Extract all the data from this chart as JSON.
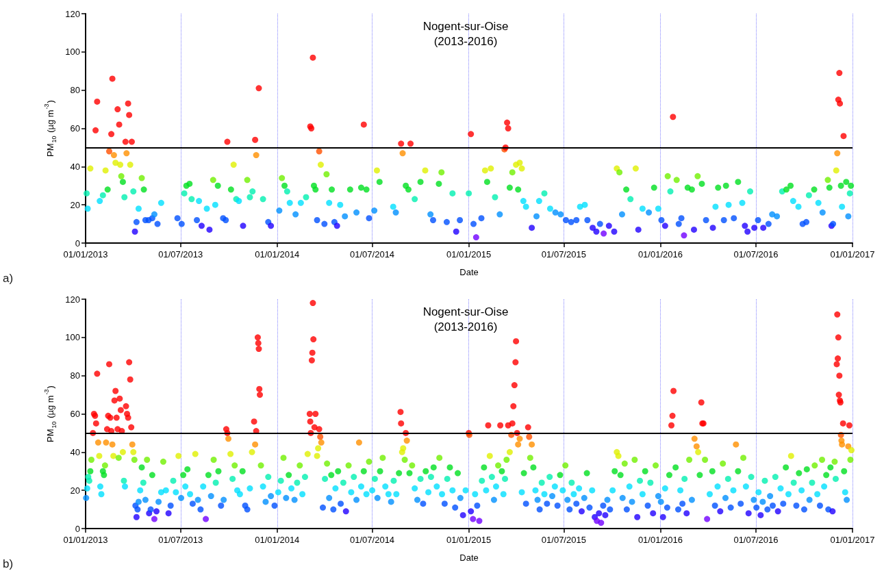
{
  "chart_data": [
    {
      "type": "scatter",
      "title": "Nogent-sur-Oise\n(2013-2016)",
      "xlabel": "Date",
      "ylabel": "PM$_{10}$ (µg m$^{-3}$)",
      "annotations": [
        "a)"
      ],
      "marker": "circle",
      "grid": "x",
      "xlim": [
        "2013-01-01",
        "2017-01-01"
      ],
      "xticks": [
        {
          "value": "2013-01-01",
          "label": "01/01/2013"
        },
        {
          "value": "2013-07-01",
          "label": "01/07/2013"
        },
        {
          "value": "2014-01-01",
          "label": "01/01/2014"
        },
        {
          "value": "2014-07-01",
          "label": "01/07/2014"
        },
        {
          "value": "2015-01-01",
          "label": "01/01/2015"
        },
        {
          "value": "2015-07-01",
          "label": "01/07/2015"
        },
        {
          "value": "2016-01-01",
          "label": "01/01/2016"
        },
        {
          "value": "2016-07-01",
          "label": "01/07/2016"
        },
        {
          "value": "2017-01-01",
          "label": "01/01/2017"
        }
      ],
      "ylim": [
        0,
        120
      ],
      "yticks": [
        0,
        20,
        40,
        60,
        80,
        100,
        120
      ],
      "ref_lines": [
        {
          "axis": "y",
          "value": 50,
          "color": "#000000"
        }
      ],
      "x": [
        "2013-01-03",
        "2013-01-05",
        "2013-01-10",
        "2013-01-20",
        "2013-01-23",
        "2013-01-28",
        "2013-02-03",
        "2013-02-08",
        "2013-02-12",
        "2013-02-15",
        "2013-02-19",
        "2013-02-21",
        "2013-02-24",
        "2013-02-27",
        "2013-03-03",
        "2013-03-06",
        "2013-03-08",
        "2013-03-10",
        "2013-03-13",
        "2013-03-16",
        "2013-03-18",
        "2013-03-20",
        "2013-03-23",
        "2013-03-25",
        "2013-03-27",
        "2013-03-30",
        "2013-04-02",
        "2013-04-05",
        "2013-04-08",
        "2013-04-12",
        "2013-04-18",
        "2013-04-22",
        "2013-04-25",
        "2013-05-01",
        "2013-05-08",
        "2013-05-12",
        "2013-05-18",
        "2013-05-25",
        "2013-06-25",
        "2013-07-03",
        "2013-07-08",
        "2013-07-12",
        "2013-07-18",
        "2013-07-22",
        "2013-08-01",
        "2013-08-05",
        "2013-08-10",
        "2013-08-20",
        "2013-08-25",
        "2013-09-01",
        "2013-09-05",
        "2013-09-10",
        "2013-09-20",
        "2013-09-25",
        "2013-09-28",
        "2013-10-05",
        "2013-10-10",
        "2013-10-15",
        "2013-10-20",
        "2013-10-28",
        "2013-11-05",
        "2013-11-10",
        "2013-11-15",
        "2013-11-20",
        "2013-11-22",
        "2013-11-27",
        "2013-12-05",
        "2013-12-15",
        "2013-12-20",
        "2014-01-05",
        "2014-01-10",
        "2014-01-15",
        "2014-01-20",
        "2014-01-25",
        "2014-02-05",
        "2014-02-15",
        "2014-02-25",
        "2014-03-05",
        "2014-03-07",
        "2014-03-10",
        "2014-03-12",
        "2014-03-15",
        "2014-03-18",
        "2014-03-22",
        "2014-03-25",
        "2014-04-01",
        "2014-04-05",
        "2014-04-10",
        "2014-04-15",
        "2014-04-20",
        "2014-04-25",
        "2014-05-01",
        "2014-05-10",
        "2014-05-20",
        "2014-06-01",
        "2014-06-10",
        "2014-06-15",
        "2014-06-20",
        "2014-06-25",
        "2014-07-05",
        "2014-07-10",
        "2014-07-15",
        "2014-08-10",
        "2014-08-15",
        "2014-08-25",
        "2014-08-28",
        "2014-09-03",
        "2014-09-08",
        "2014-09-12",
        "2014-09-20",
        "2014-10-01",
        "2014-10-10",
        "2014-10-20",
        "2014-10-25",
        "2014-11-05",
        "2014-11-10",
        "2014-11-20",
        "2014-12-01",
        "2014-12-08",
        "2014-12-15",
        "2015-01-01",
        "2015-01-05",
        "2015-01-10",
        "2015-01-15",
        "2015-01-25",
        "2015-02-01",
        "2015-02-05",
        "2015-02-12",
        "2015-02-20",
        "2015-03-01",
        "2015-03-10",
        "2015-03-12",
        "2015-03-15",
        "2015-03-17",
        "2015-03-20",
        "2015-03-25",
        "2015-04-01",
        "2015-04-05",
        "2015-04-08",
        "2015-04-12",
        "2015-04-15",
        "2015-04-20",
        "2015-05-01",
        "2015-05-10",
        "2015-05-15",
        "2015-05-25",
        "2015-06-05",
        "2015-06-15",
        "2015-06-25",
        "2015-07-05",
        "2015-07-15",
        "2015-07-25",
        "2015-08-01",
        "2015-08-10",
        "2015-08-15",
        "2015-08-25",
        "2015-09-01",
        "2015-09-08",
        "2015-09-15",
        "2015-09-25",
        "2015-10-05",
        "2015-10-10",
        "2015-10-15",
        "2015-10-20",
        "2015-10-28",
        "2015-11-05",
        "2015-11-15",
        "2015-11-20",
        "2015-11-28",
        "2015-12-10",
        "2015-12-20",
        "2015-12-28",
        "2016-01-03",
        "2016-01-10",
        "2016-01-15",
        "2016-01-20",
        "2016-01-25",
        "2016-02-01",
        "2016-02-05",
        "2016-02-10",
        "2016-02-15",
        "2016-02-22",
        "2016-03-01",
        "2016-03-05",
        "2016-03-12",
        "2016-03-20",
        "2016-03-28",
        "2016-04-10",
        "2016-04-15",
        "2016-04-20",
        "2016-05-01",
        "2016-05-05",
        "2016-05-10",
        "2016-05-20",
        "2016-05-28",
        "2016-06-05",
        "2016-06-10",
        "2016-06-15",
        "2016-06-20",
        "2016-06-28",
        "2016-07-05",
        "2016-07-15",
        "2016-07-25",
        "2016-08-01",
        "2016-08-10",
        "2016-08-20",
        "2016-08-28",
        "2016-09-05",
        "2016-09-10",
        "2016-09-20",
        "2016-09-28",
        "2016-10-05",
        "2016-10-10",
        "2016-10-20",
        "2016-10-28",
        "2016-11-05",
        "2016-11-15",
        "2016-11-18",
        "2016-11-22",
        "2016-11-25",
        "2016-12-01",
        "2016-12-03",
        "2016-12-05",
        "2016-12-07",
        "2016-12-08",
        "2016-12-10",
        "2016-12-12",
        "2016-12-15",
        "2016-12-20",
        "2016-12-24",
        "2016-12-27",
        "2016-12-29"
      ],
      "values": [
        26,
        18,
        39,
        59,
        74,
        22,
        25,
        38,
        28,
        48,
        57,
        86,
        46,
        42,
        70,
        62,
        41,
        35,
        32,
        24,
        53,
        47,
        73,
        67,
        41,
        53,
        27,
        6,
        11,
        18,
        34,
        28,
        12,
        12,
        13,
        15,
        10,
        21,
        13,
        10,
        26,
        30,
        31,
        23,
        12,
        22,
        9,
        18,
        7,
        33,
        20,
        30,
        13,
        12,
        53,
        28,
        41,
        23,
        22,
        9,
        33,
        24,
        27,
        54,
        46,
        81,
        23,
        11,
        9,
        17,
        34,
        30,
        27,
        21,
        15,
        21,
        24,
        61,
        60,
        97,
        30,
        28,
        12,
        48,
        41,
        10,
        36,
        21,
        28,
        11,
        9,
        20,
        14,
        28,
        16,
        29,
        62,
        28,
        13,
        17,
        38,
        32,
        19,
        16,
        52,
        47,
        30,
        28,
        52,
        23,
        32,
        38,
        15,
        12,
        31,
        37,
        11,
        26,
        6,
        12,
        26,
        57,
        10,
        3,
        13,
        38,
        32,
        39,
        24,
        15,
        49,
        50,
        63,
        60,
        29,
        37,
        41,
        28,
        42,
        39,
        22,
        19,
        8,
        14,
        22,
        26,
        18,
        16,
        15,
        12,
        11,
        12,
        19,
        20,
        12,
        8,
        6,
        10,
        5,
        9,
        6,
        39,
        37,
        15,
        28,
        23,
        39,
        7,
        18,
        16,
        29,
        18,
        12,
        9,
        35,
        27,
        66,
        33,
        10,
        13,
        4,
        29,
        28,
        7,
        35,
        31,
        12,
        8,
        19,
        29,
        12,
        30,
        20,
        13,
        32,
        21,
        9,
        6,
        27,
        8,
        12,
        8,
        10,
        15,
        14,
        27,
        28,
        30,
        22,
        19,
        10,
        11,
        25,
        28,
        21,
        16,
        33,
        29,
        9,
        10,
        38,
        47,
        75,
        89,
        73,
        30,
        19,
        56,
        32,
        14,
        26,
        30
      ],
      "colors": [
        "#00f0b0",
        "#00e0ff",
        "#e0f000",
        "#ff0000",
        "#ff0000",
        "#00e0ff",
        "#00f0b0",
        "#e0f000",
        "#00e020",
        "#ff5000",
        "#ff0000",
        "#ff0000",
        "#ff9000",
        "#e0f000",
        "#ff0000",
        "#ff0000",
        "#e0f000",
        "#70f000",
        "#00e020",
        "#00f0b0",
        "#ff0000",
        "#ff9000",
        "#ff0000",
        "#ff0000",
        "#e0f000",
        "#ff0000",
        "#00f0b0",
        "#2000ff",
        "#0050ff",
        "#00e0ff",
        "#70f000",
        "#00e020",
        "#0050ff",
        "#0050ff",
        "#0050ff",
        "#0090ff",
        "#0050ff",
        "#00e0ff",
        "#0050ff",
        "#0050ff",
        "#00f0b0",
        "#00e020",
        "#00e020",
        "#00f0b0",
        "#0050ff",
        "#00e0ff",
        "#2000ff",
        "#00e0ff",
        "#2000ff",
        "#70f000",
        "#00e0ff",
        "#00e020",
        "#0050ff",
        "#0050ff",
        "#ff0000",
        "#00e020",
        "#e0f000",
        "#00f0b0",
        "#00e0ff",
        "#2000ff",
        "#70f000",
        "#00f0b0",
        "#00f0b0",
        "#ff0000",
        "#ff9000",
        "#ff0000",
        "#00f0b0",
        "#0050ff",
        "#2000ff",
        "#0090ff",
        "#70f000",
        "#00e020",
        "#00f0b0",
        "#00e0ff",
        "#0090ff",
        "#00e0ff",
        "#00f0b0",
        "#ff0000",
        "#ff0000",
        "#ff0000",
        "#00e020",
        "#00e020",
        "#0050ff",
        "#ff5000",
        "#e0f000",
        "#0050ff",
        "#70f000",
        "#00e0ff",
        "#00e020",
        "#0050ff",
        "#2000ff",
        "#00e0ff",
        "#0090ff",
        "#00e020",
        "#0090ff",
        "#00e020",
        "#ff0000",
        "#00e020",
        "#0050ff",
        "#0090ff",
        "#e0f000",
        "#00e020",
        "#00e0ff",
        "#0090ff",
        "#ff0000",
        "#ff9000",
        "#00e020",
        "#00e020",
        "#ff0000",
        "#00f0b0",
        "#00e020",
        "#e0f000",
        "#0090ff",
        "#0050ff",
        "#00e020",
        "#70f000",
        "#0050ff",
        "#00f0b0",
        "#2000ff",
        "#0050ff",
        "#00f0b0",
        "#ff0000",
        "#0050ff",
        "#7000ff",
        "#0050ff",
        "#e0f000",
        "#00e020",
        "#e0f000",
        "#00f0b0",
        "#0090ff",
        "#ff5000",
        "#ff0000",
        "#ff0000",
        "#ff0000",
        "#00e020",
        "#70f000",
        "#e0f000",
        "#00e020",
        "#e0f000",
        "#e0f000",
        "#00e0ff",
        "#00e0ff",
        "#2000ff",
        "#0090ff",
        "#00e0ff",
        "#00f0b0",
        "#00e0ff",
        "#0090ff",
        "#0090ff",
        "#0050ff",
        "#0050ff",
        "#0050ff",
        "#00e0ff",
        "#00e0ff",
        "#0050ff",
        "#2000ff",
        "#2000ff",
        "#0050ff",
        "#7000ff",
        "#2000ff",
        "#2000ff",
        "#e0f000",
        "#70f000",
        "#0090ff",
        "#00e020",
        "#00f0b0",
        "#e0f000",
        "#2000ff",
        "#00e0ff",
        "#0090ff",
        "#00e020",
        "#00e0ff",
        "#0050ff",
        "#2000ff",
        "#70f000",
        "#00f0b0",
        "#ff0000",
        "#70f000",
        "#0050ff",
        "#0050ff",
        "#7000ff",
        "#00e020",
        "#00e020",
        "#2000ff",
        "#70f000",
        "#00e020",
        "#0050ff",
        "#2000ff",
        "#00e0ff",
        "#00e020",
        "#0050ff",
        "#00e020",
        "#00e0ff",
        "#0050ff",
        "#00e020",
        "#00e0ff",
        "#2000ff",
        "#2000ff",
        "#00f0b0",
        "#2000ff",
        "#0050ff",
        "#2000ff",
        "#0050ff",
        "#0090ff",
        "#0090ff",
        "#00f0b0",
        "#00e020",
        "#00e020",
        "#00e0ff",
        "#00e0ff",
        "#0050ff",
        "#0050ff",
        "#00f0b0",
        "#00e020",
        "#00e0ff",
        "#0090ff",
        "#70f000",
        "#00e020",
        "#2000ff",
        "#0050ff",
        "#e0f000",
        "#ff9000",
        "#ff0000",
        "#ff0000",
        "#ff0000",
        "#00e020",
        "#00e0ff",
        "#ff0000",
        "#00e020",
        "#0090ff",
        "#00f0b0",
        "#00e020"
      ]
    },
    {
      "type": "scatter",
      "title": "Nogent-sur-Oise\n(2013-2016)",
      "xlabel": "Date",
      "ylabel": "PM$_{10}$ (µg m$^{-3}$)",
      "annotations": [
        "b)"
      ],
      "marker": "circle",
      "grid": "x",
      "xlim": [
        "2013-01-01",
        "2017-01-01"
      ],
      "xticks": [
        {
          "value": "2013-01-01",
          "label": "01/01/2013"
        },
        {
          "value": "2013-07-01",
          "label": "01/07/2013"
        },
        {
          "value": "2014-01-01",
          "label": "01/01/2014"
        },
        {
          "value": "2014-07-01",
          "label": "01/07/2014"
        },
        {
          "value": "2015-01-01",
          "label": "01/01/2015"
        },
        {
          "value": "2015-07-01",
          "label": "01/07/2015"
        },
        {
          "value": "2016-01-01",
          "label": "01/01/2016"
        },
        {
          "value": "2016-07-01",
          "label": "01/07/2016"
        },
        {
          "value": "2017-01-01",
          "label": "01/01/2017"
        }
      ],
      "ylim": [
        0,
        120
      ],
      "yticks": [
        0,
        20,
        40,
        60,
        80,
        100,
        120
      ],
      "ref_lines": [
        {
          "axis": "y",
          "value": 50,
          "color": "#000000"
        }
      ],
      "x": [
        "2013-01-02",
        "2013-01-04",
        "2013-01-06",
        "2013-01-08",
        "2013-01-10",
        "2013-01-12",
        "2013-01-15",
        "2013-01-17",
        "2013-01-19",
        "2013-01-21",
        "2013-01-23",
        "2013-01-25",
        "2013-01-27",
        "2013-01-29",
        "2013-01-31",
        "2013-02-03",
        "2013-02-05",
        "2013-02-07",
        "2013-02-09",
        "2013-02-11",
        "2013-02-13",
        "2013-02-15",
        "2013-02-17",
        "2013-02-19",
        "2013-02-21",
        "2013-02-23",
        "2013-02-25",
        "2013-02-27",
        "2013-03-01",
        "2013-03-03",
        "2013-03-05",
        "2013-03-07",
        "2013-03-09",
        "2013-03-11",
        "2013-03-13",
        "2013-03-15",
        "2013-03-17",
        "2013-03-19",
        "2013-03-21",
        "2013-03-23",
        "2013-03-25",
        "2013-03-27",
        "2013-03-29",
        "2013-03-31",
        "2013-04-02",
        "2013-04-04",
        "2013-04-06",
        "2013-04-08",
        "2013-04-10",
        "2013-04-12",
        "2013-04-15",
        "2013-04-18",
        "2013-04-21",
        "2013-04-25",
        "2013-04-28",
        "2013-05-02",
        "2013-05-05",
        "2013-05-08",
        "2013-05-12",
        "2013-05-16",
        "2013-05-20",
        "2013-05-25",
        "2013-05-29",
        "2013-06-03",
        "2013-06-08",
        "2013-06-12",
        "2013-06-17",
        "2013-06-22",
        "2013-06-27",
        "2013-07-02",
        "2013-07-06",
        "2013-07-10",
        "2013-07-14",
        "2013-07-19",
        "2013-07-24",
        "2013-07-29",
        "2013-08-03",
        "2013-08-08",
        "2013-08-13",
        "2013-08-18",
        "2013-08-23",
        "2013-08-28",
        "2013-09-02",
        "2013-09-06",
        "2013-09-11",
        "2013-09-16",
        "2013-09-21",
        "2013-09-26",
        "2013-09-28",
        "2013-09-30",
        "2013-10-04",
        "2013-10-08",
        "2013-10-12",
        "2013-10-17",
        "2013-10-22",
        "2013-10-27",
        "2013-11-01",
        "2013-11-05",
        "2013-11-10",
        "2013-11-14",
        "2013-11-18",
        "2013-11-20",
        "2013-11-22",
        "2013-11-25",
        "2013-11-26",
        "2013-11-27",
        "2013-11-28",
        "2013-11-29",
        "2013-12-01",
        "2013-12-05",
        "2013-12-10",
        "2013-12-15",
        "2013-12-20",
        "2013-12-27",
        "2014-01-03",
        "2014-01-08",
        "2014-01-13",
        "2014-01-18",
        "2014-01-23",
        "2014-01-28",
        "2014-02-03",
        "2014-02-08",
        "2014-02-13",
        "2014-02-18",
        "2014-02-23",
        "2014-02-28",
        "2014-03-04",
        "2014-03-05",
        "2014-03-06",
        "2014-03-08",
        "2014-03-09",
        "2014-03-10",
        "2014-03-11",
        "2014-03-13",
        "2014-03-15",
        "2014-03-18",
        "2014-03-20",
        "2014-03-22",
        "2014-03-24",
        "2014-03-26",
        "2014-03-29",
        "2014-04-02",
        "2014-04-06",
        "2014-04-10",
        "2014-04-14",
        "2014-04-18",
        "2014-04-22",
        "2014-04-27",
        "2014-05-02",
        "2014-05-07",
        "2014-05-12",
        "2014-05-17",
        "2014-05-22",
        "2014-05-27",
        "2014-06-01",
        "2014-06-06",
        "2014-06-10",
        "2014-06-15",
        "2014-06-20",
        "2014-06-25",
        "2014-07-01",
        "2014-07-06",
        "2014-07-11",
        "2014-07-16",
        "2014-07-21",
        "2014-07-26",
        "2014-08-01",
        "2014-08-06",
        "2014-08-11",
        "2014-08-16",
        "2014-08-21",
        "2014-08-24",
        "2014-08-25",
        "2014-08-27",
        "2014-08-29",
        "2014-09-01",
        "2014-09-03",
        "2014-09-05",
        "2014-09-10",
        "2014-09-15",
        "2014-09-20",
        "2014-09-25",
        "2014-10-01",
        "2014-10-06",
        "2014-10-11",
        "2014-10-16",
        "2014-10-21",
        "2014-10-26",
        "2014-11-01",
        "2014-11-06",
        "2014-11-11",
        "2014-11-16",
        "2014-11-21",
        "2014-11-26",
        "2014-12-01",
        "2014-12-06",
        "2014-12-11",
        "2014-12-16",
        "2014-12-21",
        "2014-12-26",
        "2015-01-01",
        "2015-01-02",
        "2015-01-05",
        "2015-01-09",
        "2015-01-13",
        "2015-01-17",
        "2015-01-21",
        "2015-01-26",
        "2015-01-30",
        "2015-02-03",
        "2015-02-07",
        "2015-02-10",
        "2015-02-14",
        "2015-02-18",
        "2015-02-22",
        "2015-02-26",
        "2015-03-02",
        "2015-03-05",
        "2015-03-08",
        "2015-03-11",
        "2015-03-14",
        "2015-03-17",
        "2015-03-20",
        "2015-03-23",
        "2015-03-25",
        "2015-03-27",
        "2015-03-29",
        "2015-03-31",
        "2015-04-01",
        "2015-04-03",
        "2015-04-05",
        "2015-04-08",
        "2015-04-12",
        "2015-04-16",
        "2015-04-20",
        "2015-04-24",
        "2015-04-26",
        "2015-04-28",
        "2015-05-01",
        "2015-05-04",
        "2015-05-08",
        "2015-05-12",
        "2015-05-16",
        "2015-05-20",
        "2015-05-25",
        "2015-05-30",
        "2015-06-04",
        "2015-06-09",
        "2015-06-14",
        "2015-06-19",
        "2015-06-24",
        "2015-06-29",
        "2015-07-04",
        "2015-07-08",
        "2015-07-12",
        "2015-07-16",
        "2015-07-20",
        "2015-07-25",
        "2015-07-30",
        "2015-08-04",
        "2015-08-09",
        "2015-08-14",
        "2015-08-19",
        "2015-08-24",
        "2015-08-29",
        "2015-09-02",
        "2015-09-06",
        "2015-09-10",
        "2015-09-14",
        "2015-09-18",
        "2015-09-22",
        "2015-09-27",
        "2015-10-02",
        "2015-10-06",
        "2015-10-10",
        "2015-10-13",
        "2015-10-17",
        "2015-10-21",
        "2015-10-25",
        "2015-10-29",
        "2015-11-03",
        "2015-11-08",
        "2015-11-13",
        "2015-11-18",
        "2015-11-23",
        "2015-11-28",
        "2015-12-03",
        "2015-12-08",
        "2015-12-13",
        "2015-12-18",
        "2015-12-23",
        "2015-12-28",
        "2016-01-02",
        "2016-01-06",
        "2016-01-10",
        "2016-01-14",
        "2016-01-18",
        "2016-01-22",
        "2016-01-24",
        "2016-01-26",
        "2016-01-30",
        "2016-02-04",
        "2016-02-08",
        "2016-02-12",
        "2016-02-16",
        "2016-02-20",
        "2016-02-25",
        "2016-03-01",
        "2016-03-06",
        "2016-03-10",
        "2016-03-13",
        "2016-03-16",
        "2016-03-19",
        "2016-03-21",
        "2016-03-23",
        "2016-03-26",
        "2016-03-30",
        "2016-04-04",
        "2016-04-09",
        "2016-04-14",
        "2016-04-19",
        "2016-04-24",
        "2016-04-29",
        "2016-05-04",
        "2016-05-09",
        "2016-05-14",
        "2016-05-19",
        "2016-05-24",
        "2016-05-28",
        "2016-06-02",
        "2016-06-07",
        "2016-06-12",
        "2016-06-17",
        "2016-06-22",
        "2016-06-27",
        "2016-07-02",
        "2016-07-06",
        "2016-07-10",
        "2016-07-14",
        "2016-07-18",
        "2016-07-23",
        "2016-07-28",
        "2016-08-02",
        "2016-08-07",
        "2016-08-12",
        "2016-08-17",
        "2016-08-22",
        "2016-08-27",
        "2016-09-01",
        "2016-09-06",
        "2016-09-11",
        "2016-09-16",
        "2016-09-21",
        "2016-09-26",
        "2016-10-01",
        "2016-10-06",
        "2016-10-11",
        "2016-10-16",
        "2016-10-21",
        "2016-10-26",
        "2016-10-31",
        "2016-11-04",
        "2016-11-08",
        "2016-11-12",
        "2016-11-16",
        "2016-11-20",
        "2016-11-24",
        "2016-11-28",
        "2016-11-30",
        "2016-12-02",
        "2016-12-03",
        "2016-12-04",
        "2016-12-05",
        "2016-12-06",
        "2016-12-07",
        "2016-12-08",
        "2016-12-09",
        "2016-12-10",
        "2016-12-11",
        "2016-12-12",
        "2016-12-14",
        "2016-12-16",
        "2016-12-18",
        "2016-12-21",
        "2016-12-24",
        "2016-12-26",
        "2016-12-28",
        "2016-12-30"
      ],
      "values": [
        16,
        21,
        27,
        25,
        30,
        36,
        50,
        60,
        59,
        55,
        81,
        45,
        38,
        22,
        18,
        30,
        28,
        33,
        45,
        52,
        59,
        86,
        58,
        51,
        44,
        38,
        67,
        72,
        58,
        52,
        37,
        68,
        62,
        51,
        40,
        25,
        22,
        64,
        60,
        58,
        87,
        78,
        53,
        44,
        40,
        36,
        12,
        6,
        10,
        14,
        20,
        32,
        24,
        15,
        36,
        8,
        10,
        28,
        5,
        9,
        14,
        19,
        35,
        20,
        8,
        12,
        25,
        19,
        38,
        16,
        28,
        22,
        31,
        18,
        13,
        39,
        15,
        10,
        22,
        5,
        28,
        17,
        36,
        24,
        30,
        12,
        15,
        52,
        50,
        47,
        39,
        26,
        33,
        20,
        18,
        30,
        12,
        10,
        21,
        40,
        56,
        44,
        51,
        100,
        97,
        94,
        73,
        70,
        33,
        22,
        14,
        27,
        17,
        12,
        19,
        25,
        37,
        16,
        28,
        21,
        15,
        24,
        33,
        18,
        27,
        39,
        60,
        56,
        50,
        88,
        92,
        118,
        99,
        53,
        60,
        38,
        42,
        52,
        48,
        45,
        11,
        26,
        34,
        16,
        28,
        10,
        21,
        30,
        13,
        24,
        9,
        33,
        19,
        27,
        15,
        45,
        22,
        30,
        18,
        35,
        20,
        26,
        16,
        30,
        37,
        22,
        18,
        14,
        25,
        18,
        29,
        61,
        55,
        40,
        42,
        36,
        50,
        46,
        29,
        33,
        21,
        15,
        26,
        13,
        30,
        19,
        27,
        32,
        22,
        37,
        18,
        13,
        26,
        32,
        20,
        11,
        29,
        16,
        7,
        20,
        50,
        49,
        9,
        5,
        18,
        12,
        4,
        25,
        32,
        20,
        54,
        38,
        27,
        15,
        22,
        33,
        54,
        30,
        18,
        26,
        36,
        54,
        40,
        49,
        55,
        64,
        75,
        87,
        98,
        50,
        44,
        47,
        19,
        29,
        13,
        53,
        48,
        37,
        44,
        32,
        20,
        15,
        10,
        24,
        18,
        13,
        27,
        17,
        22,
        12,
        28,
        20,
        33,
        15,
        10,
        24,
        18,
        13,
        21,
        9,
        16,
        29,
        11,
        20,
        6,
        4,
        8,
        3,
        12,
        7,
        15,
        10,
        20,
        30,
        40,
        38,
        28,
        16,
        34,
        10,
        22,
        14,
        36,
        6,
        25,
        18,
        30,
        12,
        24,
        8,
        33,
        17,
        14,
        6,
        21,
        11,
        28,
        54,
        59,
        72,
        32,
        10,
        20,
        13,
        26,
        8,
        36,
        15,
        47,
        43,
        40,
        28,
        66,
        55,
        55,
        36,
        5,
        18,
        30,
        12,
        22,
        9,
        34,
        16,
        26,
        11,
        20,
        44,
        30,
        13,
        37,
        22,
        8,
        27,
        15,
        11,
        19,
        7,
        14,
        25,
        10,
        17,
        12,
        27,
        9,
        21,
        13,
        32,
        18,
        38,
        24,
        12,
        29,
        20,
        10,
        31,
        15,
        24,
        33,
        18,
        12,
        36,
        22,
        28,
        10,
        32,
        9,
        35,
        26,
        86,
        112,
        89,
        100,
        70,
        80,
        67,
        66,
        49,
        46,
        44,
        55,
        30,
        19,
        15,
        43,
        54,
        36,
        41
      ],
      "colors": [
        "#0090ff",
        "#00e0ff",
        "#00f0b0",
        "#00f0b0",
        "#00e020",
        "#70f000",
        "#ff0000",
        "#ff0000",
        "#ff0000",
        "#ff0000",
        "#ff0000",
        "#ff9000",
        "#e0f000",
        "#00e0ff",
        "#00e0ff",
        "#00e020",
        "#00e020",
        "#70f000",
        "#ff9000",
        "#ff0000",
        "#ff0000",
        "#ff0000",
        "#ff0000",
        "#ff0000",
        "#ff9000",
        "#e0f000",
        "#ff0000",
        "#ff0000",
        "#ff0000",
        "#ff0000",
        "#70f000",
        "#ff0000",
        "#ff0000",
        "#ff0000",
        "#e0f000",
        "#00f0b0",
        "#00e0ff",
        "#ff0000",
        "#ff0000",
        "#ff0000",
        "#ff0000",
        "#ff0000",
        "#ff0000",
        "#ff9000",
        "#e0f000",
        "#70f000",
        "#0050ff",
        "#2000ff",
        "#0050ff",
        "#0090ff",
        "#00e0ff",
        "#00e020",
        "#00f0b0",
        "#0090ff",
        "#70f000",
        "#2000ff",
        "#0050ff",
        "#00e020",
        "#7000ff",
        "#2000ff",
        "#0090ff",
        "#00e0ff",
        "#70f000",
        "#00e0ff",
        "#2000ff",
        "#0050ff",
        "#00f0b0",
        "#00e0ff",
        "#e0f000",
        "#0090ff",
        "#00e020",
        "#00e0ff",
        "#00e020",
        "#00e0ff",
        "#0050ff",
        "#e0f000",
        "#0090ff",
        "#0050ff",
        "#00e0ff",
        "#7000ff",
        "#00e020",
        "#0090ff",
        "#70f000",
        "#00f0b0",
        "#00e020",
        "#0050ff",
        "#0090ff",
        "#ff0000",
        "#ff0000",
        "#ff9000",
        "#e0f000",
        "#00f0b0",
        "#70f000",
        "#00e0ff",
        "#00e0ff",
        "#00e020",
        "#0050ff",
        "#0050ff",
        "#00e0ff",
        "#e0f000",
        "#ff0000",
        "#ff9000",
        "#ff0000",
        "#ff0000",
        "#ff0000",
        "#ff0000",
        "#ff0000",
        "#ff0000",
        "#70f000",
        "#00e0ff",
        "#0090ff",
        "#00f0b0",
        "#0090ff",
        "#0050ff",
        "#00e0ff",
        "#00f0b0",
        "#70f000",
        "#0090ff",
        "#00e020",
        "#00e0ff",
        "#0090ff",
        "#00f0b0",
        "#70f000",
        "#00e0ff",
        "#00f0b0",
        "#e0f000",
        "#ff0000",
        "#ff0000",
        "#ff0000",
        "#ff0000",
        "#ff0000",
        "#ff0000",
        "#ff0000",
        "#ff0000",
        "#ff0000",
        "#e0f000",
        "#e0f000",
        "#ff0000",
        "#ff5000",
        "#ff9000",
        "#0050ff",
        "#00f0b0",
        "#70f000",
        "#0090ff",
        "#00e020",
        "#0050ff",
        "#00e0ff",
        "#00e020",
        "#0050ff",
        "#00f0b0",
        "#2000ff",
        "#70f000",
        "#00e0ff",
        "#00f0b0",
        "#0090ff",
        "#ff9000",
        "#00e0ff",
        "#00e020",
        "#00e0ff",
        "#70f000",
        "#00e0ff",
        "#00f0b0",
        "#0090ff",
        "#00e020",
        "#70f000",
        "#00e0ff",
        "#00e0ff",
        "#0090ff",
        "#00f0b0",
        "#00e0ff",
        "#00e020",
        "#ff0000",
        "#ff0000",
        "#e0f000",
        "#e0f000",
        "#70f000",
        "#ff0000",
        "#ff9000",
        "#00e020",
        "#70f000",
        "#00e0ff",
        "#0090ff",
        "#00f0b0",
        "#0050ff",
        "#00e020",
        "#00e0ff",
        "#00f0b0",
        "#00e020",
        "#00e0ff",
        "#70f000",
        "#00e0ff",
        "#0050ff",
        "#00f0b0",
        "#00e020",
        "#00e0ff",
        "#0050ff",
        "#00e020",
        "#0090ff",
        "#2000ff",
        "#00e0ff",
        "#ff0000",
        "#ff5000",
        "#2000ff",
        "#7000ff",
        "#00e0ff",
        "#0050ff",
        "#7000ff",
        "#00f0b0",
        "#00e020",
        "#00e0ff",
        "#ff0000",
        "#e0f000",
        "#00f0b0",
        "#0090ff",
        "#00e0ff",
        "#70f000",
        "#ff0000",
        "#00e020",
        "#00e0ff",
        "#00f0b0",
        "#70f000",
        "#ff0000",
        "#e0f000",
        "#ff5000",
        "#ff0000",
        "#ff0000",
        "#ff0000",
        "#ff0000",
        "#ff0000",
        "#ff0000",
        "#ff9000",
        "#ff9000",
        "#00e0ff",
        "#00e020",
        "#0050ff",
        "#ff0000",
        "#ff5000",
        "#70f000",
        "#ff9000",
        "#00e020",
        "#00e0ff",
        "#0090ff",
        "#0050ff",
        "#00f0b0",
        "#00e0ff",
        "#0050ff",
        "#00f0b0",
        "#0090ff",
        "#00e0ff",
        "#0050ff",
        "#00e020",
        "#00e0ff",
        "#70f000",
        "#0090ff",
        "#0050ff",
        "#00f0b0",
        "#00e0ff",
        "#0050ff",
        "#00e0ff",
        "#2000ff",
        "#0090ff",
        "#00e020",
        "#0050ff",
        "#00e0ff",
        "#2000ff",
        "#7000ff",
        "#2000ff",
        "#7000ff",
        "#0050ff",
        "#2000ff",
        "#0090ff",
        "#0050ff",
        "#00e0ff",
        "#00e020",
        "#e0f000",
        "#e0f000",
        "#00e020",
        "#0090ff",
        "#70f000",
        "#0050ff",
        "#00e0ff",
        "#0090ff",
        "#70f000",
        "#2000ff",
        "#00f0b0",
        "#00e0ff",
        "#00e020",
        "#0050ff",
        "#00f0b0",
        "#2000ff",
        "#70f000",
        "#0090ff",
        "#0090ff",
        "#2000ff",
        "#00e0ff",
        "#0050ff",
        "#00e020",
        "#ff0000",
        "#ff0000",
        "#ff0000",
        "#00e020",
        "#0050ff",
        "#00e0ff",
        "#0050ff",
        "#00f0b0",
        "#2000ff",
        "#70f000",
        "#0090ff",
        "#ff9000",
        "#ff9000",
        "#e0f000",
        "#00e020",
        "#ff0000",
        "#ff0000",
        "#ff0000",
        "#70f000",
        "#7000ff",
        "#00e0ff",
        "#00e020",
        "#0050ff",
        "#00e0ff",
        "#2000ff",
        "#70f000",
        "#0090ff",
        "#00f0b0",
        "#0050ff",
        "#00e0ff",
        "#ff9000",
        "#00e020",
        "#0050ff",
        "#70f000",
        "#00e0ff",
        "#2000ff",
        "#00f0b0",
        "#0090ff",
        "#0050ff",
        "#00e0ff",
        "#2000ff",
        "#0090ff",
        "#00f0b0",
        "#0050ff",
        "#0090ff",
        "#0050ff",
        "#00f0b0",
        "#2000ff",
        "#00e0ff",
        "#0050ff",
        "#00e020",
        "#00e0ff",
        "#e0f000",
        "#00f0b0",
        "#0050ff",
        "#00e020",
        "#00e0ff",
        "#0050ff",
        "#00e020",
        "#0090ff",
        "#00f0b0",
        "#70f000",
        "#00e0ff",
        "#0050ff",
        "#70f000",
        "#00e0ff",
        "#00e020",
        "#0050ff",
        "#00e020",
        "#2000ff",
        "#70f000",
        "#00f0b0",
        "#ff0000",
        "#ff0000",
        "#ff0000",
        "#ff0000",
        "#ff0000",
        "#ff0000",
        "#ff0000",
        "#ff0000",
        "#ff5000",
        "#ff9000",
        "#ff9000",
        "#ff0000",
        "#00e020",
        "#00e0ff",
        "#0090ff",
        "#ff9000",
        "#ff0000",
        "#70f000",
        "#e0f000"
      ]
    }
  ]
}
